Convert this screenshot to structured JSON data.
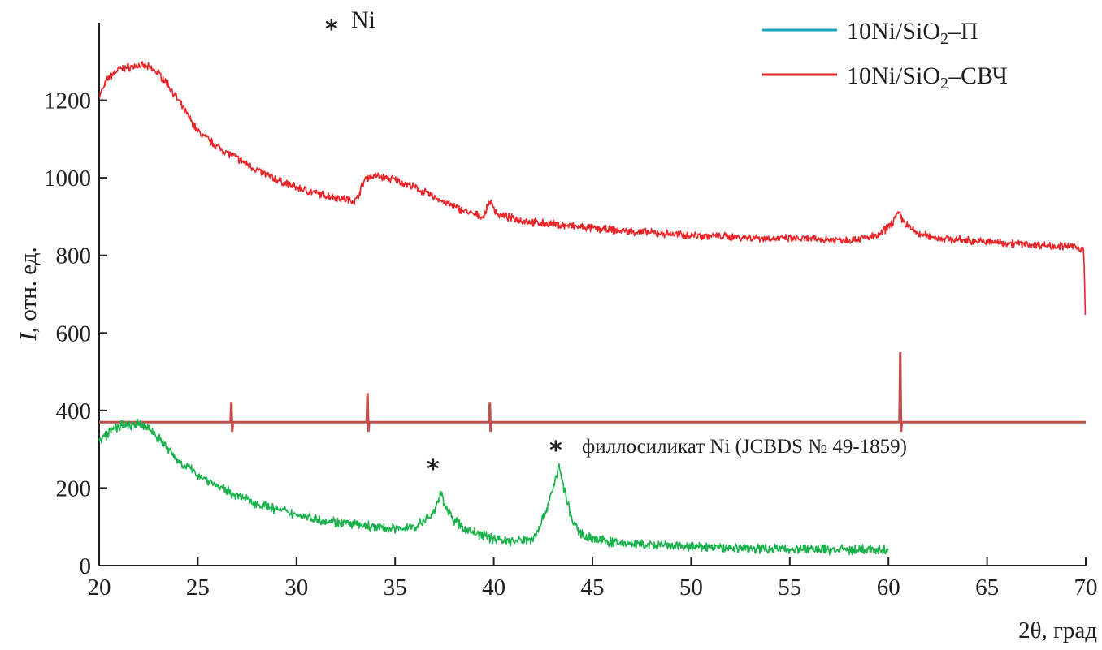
{
  "chart_data": {
    "type": "line",
    "xlabel": "2θ, град",
    "ylabel": "I, отн. ед.",
    "ylabel_italic_part": "I",
    "ylabel_rest": ", отн. ед.",
    "xlim": [
      20,
      70
    ],
    "ylim": [
      0,
      1400
    ],
    "x_ticks": [
      20,
      25,
      30,
      35,
      40,
      45,
      50,
      55,
      60,
      65,
      70
    ],
    "y_ticks": [
      0,
      200,
      400,
      600,
      800,
      1000,
      1200
    ],
    "grid": false,
    "legend_position": "top-right",
    "legend": [
      {
        "base": "10Ni/SiO",
        "sub": "2",
        "suffix": "–П",
        "color": "#1b9fc4"
      },
      {
        "base": "10Ni/SiO",
        "sub": "2",
        "suffix": "–СВЧ",
        "color": "#e8262a"
      }
    ],
    "annotations": {
      "ni_marker": {
        "star": "*",
        "text": "Ni"
      },
      "phyllo_marker": {
        "star": "*",
        "text": "филлосиликат Ni (JCBDS № 49-1859)"
      }
    },
    "series": [
      {
        "name": "10Ni/SiO₂–СВЧ",
        "color": "#e8262a",
        "x": [
          20,
          20.5,
          21,
          21.5,
          22,
          22.5,
          23,
          23.5,
          24,
          24.5,
          25,
          26,
          27,
          28,
          29,
          30,
          31,
          32,
          33,
          33.5,
          34,
          35,
          36,
          37,
          38,
          39,
          39.5,
          39.8,
          40.2,
          41,
          42,
          44,
          46,
          48,
          50,
          52,
          54,
          56,
          58,
          59.5,
          60.2,
          60.5,
          60.8,
          61.5,
          62.5,
          64,
          66,
          68,
          69.5,
          69.9,
          70
        ],
        "values": [
          1210,
          1260,
          1280,
          1285,
          1290,
          1285,
          1270,
          1240,
          1200,
          1160,
          1120,
          1080,
          1050,
          1020,
          995,
          975,
          960,
          950,
          940,
          1000,
          1005,
          995,
          975,
          950,
          925,
          905,
          900,
          940,
          905,
          895,
          885,
          875,
          865,
          858,
          852,
          848,
          844,
          842,
          840,
          850,
          885,
          910,
          885,
          855,
          845,
          838,
          832,
          826,
          822,
          815,
          600
        ]
      },
      {
        "name": "",
        "color": "#c0504d",
        "x": [
          20,
          70
        ],
        "values": [
          370,
          370
        ],
        "reference_peaks": [
          {
            "x": 26.7,
            "height": 420
          },
          {
            "x": 33.6,
            "height": 445
          },
          {
            "x": 39.8,
            "height": 420
          },
          {
            "x": 60.6,
            "height": 550
          }
        ]
      },
      {
        "name": "10Ni/SiO₂–П",
        "color": "#1ab24b",
        "x": [
          20,
          20.5,
          21,
          21.5,
          22,
          22.5,
          23,
          23.5,
          24,
          25,
          26,
          27,
          28,
          29,
          30,
          31,
          32,
          33,
          34,
          35,
          36,
          36.5,
          37,
          37.3,
          37.6,
          38,
          38.5,
          39,
          40,
          41,
          42,
          42.5,
          43,
          43.3,
          43.6,
          44,
          44.5,
          45,
          46,
          48,
          50,
          52,
          54,
          56,
          58,
          60
        ],
        "values": [
          320,
          345,
          360,
          360,
          365,
          355,
          330,
          300,
          270,
          235,
          205,
          180,
          160,
          145,
          132,
          120,
          112,
          105,
          98,
          95,
          100,
          115,
          140,
          185,
          150,
          115,
          95,
          85,
          70,
          62,
          70,
          120,
          200,
          255,
          190,
          110,
          80,
          70,
          60,
          52,
          48,
          46,
          44,
          42,
          41,
          40
        ]
      }
    ]
  }
}
